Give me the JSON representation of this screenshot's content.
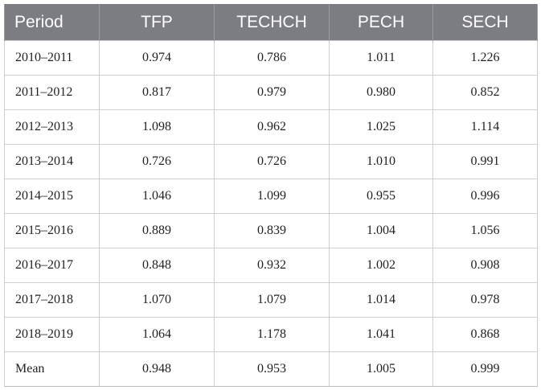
{
  "table": {
    "headers": [
      "Period",
      "TFP",
      "TECHCH",
      "PECH",
      "SECH"
    ],
    "rows": [
      [
        "2010–2011",
        "0.974",
        "0.786",
        "1.011",
        "1.226"
      ],
      [
        "2011–2012",
        "0.817",
        "0.979",
        "0.980",
        "0.852"
      ],
      [
        "2012–2013",
        "1.098",
        "0.962",
        "1.025",
        "1.114"
      ],
      [
        "2013–2014",
        "0.726",
        "0.726",
        "1.010",
        "0.991"
      ],
      [
        "2014–2015",
        "1.046",
        "1.099",
        "0.955",
        "0.996"
      ],
      [
        "2015–2016",
        "0.889",
        "0.839",
        "1.004",
        "1.056"
      ],
      [
        "2016–2017",
        "0.848",
        "0.932",
        "1.002",
        "0.908"
      ],
      [
        "2017–2018",
        "1.070",
        "1.079",
        "1.014",
        "0.978"
      ],
      [
        "2018–2019",
        "1.064",
        "1.178",
        "1.041",
        "0.868"
      ],
      [
        "Mean",
        "0.948",
        "0.953",
        "1.005",
        "0.999"
      ]
    ]
  },
  "colors": {
    "header_bg": "#7b7d82",
    "header_text": "#ffffff",
    "grid": "#cfcfcf"
  }
}
